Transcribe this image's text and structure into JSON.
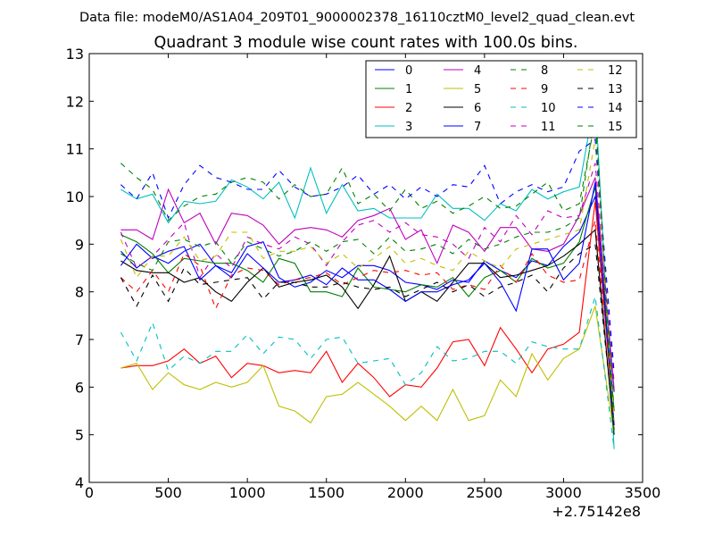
{
  "chart_data": {
    "type": "line",
    "suptitle": "Data file: modeM0/AS1A04_209T01_9000002378_16110cztM0_level2_quad_clean.evt",
    "title": "Quadrant 3 module wise count rates with 100.0s bins.",
    "xlabel": "",
    "ylabel": "",
    "x_offset_label": "+2.75142e8",
    "xlim": [
      0,
      3500
    ],
    "ylim": [
      4,
      13
    ],
    "xticks": [
      "0",
      "500",
      "1000",
      "1500",
      "2000",
      "2500",
      "3000",
      "3500"
    ],
    "yticks": [
      "4",
      "5",
      "6",
      "7",
      "8",
      "9",
      "10",
      "11",
      "12",
      "13"
    ],
    "grid": false,
    "legend_position": "top-right",
    "x": [
      200,
      300,
      400,
      500,
      600,
      700,
      800,
      900,
      1000,
      1100,
      1200,
      1300,
      1400,
      1500,
      1600,
      1700,
      1800,
      1900,
      2000,
      2100,
      2200,
      2300,
      2400,
      2500,
      2600,
      2700,
      2800,
      2900,
      3000,
      3100,
      3200,
      3320
    ],
    "series": [
      {
        "name": "0",
        "color": "#0000ff",
        "dash": "solid",
        "values": [
          8.85,
          8.5,
          8.75,
          8.6,
          8.85,
          9.0,
          8.55,
          8.4,
          8.95,
          9.05,
          8.3,
          8.1,
          8.2,
          8.45,
          8.3,
          8.55,
          8.55,
          8.45,
          8.2,
          8.15,
          8.05,
          8.25,
          8.2,
          8.65,
          8.45,
          8.3,
          8.65,
          8.55,
          8.95,
          9.25,
          10.0,
          5.9
        ]
      },
      {
        "name": "1",
        "color": "#008000",
        "dash": "solid",
        "values": [
          9.2,
          9.05,
          8.8,
          8.4,
          8.7,
          8.65,
          8.6,
          8.6,
          8.45,
          8.2,
          8.7,
          8.6,
          8.0,
          8.0,
          7.9,
          8.5,
          8.1,
          8.05,
          8.0,
          8.15,
          8.1,
          8.3,
          7.9,
          8.3,
          8.45,
          8.2,
          8.7,
          8.5,
          8.6,
          9.05,
          10.2,
          5.5
        ]
      },
      {
        "name": "2",
        "color": "#ff0000",
        "dash": "solid",
        "values": [
          6.4,
          6.45,
          6.45,
          6.55,
          6.8,
          6.5,
          6.65,
          6.2,
          6.5,
          6.45,
          6.3,
          6.35,
          6.3,
          6.75,
          6.1,
          6.5,
          6.2,
          5.8,
          6.05,
          6.0,
          6.4,
          6.95,
          7.0,
          6.45,
          7.25,
          6.8,
          6.3,
          6.8,
          6.9,
          7.15,
          9.9,
          5.2
        ]
      },
      {
        "name": "3",
        "color": "#00bfbf",
        "dash": "solid",
        "values": [
          10.15,
          9.95,
          10.05,
          9.45,
          9.9,
          9.85,
          9.9,
          10.35,
          10.2,
          9.95,
          10.3,
          9.55,
          10.6,
          9.65,
          10.25,
          9.7,
          9.75,
          9.55,
          9.55,
          9.55,
          10.05,
          9.75,
          9.75,
          9.5,
          9.85,
          9.7,
          10.15,
          9.95,
          10.1,
          10.2,
          12.1,
          4.7
        ]
      },
      {
        "name": "4",
        "color": "#bf00bf",
        "dash": "solid",
        "values": [
          9.3,
          9.3,
          9.1,
          10.15,
          9.45,
          9.65,
          9.0,
          9.65,
          9.6,
          9.4,
          9.0,
          9.3,
          9.35,
          9.3,
          9.15,
          9.5,
          9.6,
          9.75,
          9.1,
          9.3,
          8.6,
          9.4,
          9.25,
          8.85,
          9.35,
          9.35,
          8.9,
          8.85,
          9.0,
          9.6,
          10.4,
          5.95
        ]
      },
      {
        "name": "5",
        "color": "#bfbf00",
        "dash": "solid",
        "values": [
          6.4,
          6.5,
          5.95,
          6.3,
          6.05,
          5.95,
          6.1,
          6.0,
          6.1,
          6.45,
          5.6,
          5.5,
          5.25,
          5.8,
          5.85,
          6.1,
          5.85,
          5.6,
          5.3,
          5.6,
          5.3,
          5.95,
          5.3,
          5.4,
          6.15,
          5.8,
          6.7,
          6.15,
          6.6,
          6.8,
          7.7,
          5.0
        ]
      },
      {
        "name": "6",
        "color": "#000000",
        "dash": "solid",
        "values": [
          8.65,
          8.45,
          8.4,
          8.4,
          8.2,
          8.3,
          8.0,
          7.8,
          8.2,
          8.5,
          8.1,
          8.2,
          8.25,
          8.35,
          8.1,
          7.65,
          8.15,
          8.75,
          7.8,
          8.0,
          7.8,
          8.2,
          8.6,
          8.6,
          8.3,
          8.35,
          8.45,
          8.55,
          8.75,
          9.0,
          9.3,
          5.0
        ]
      },
      {
        "name": "7",
        "color": "#0000ff",
        "dash": "solid",
        "values": [
          8.55,
          9.0,
          8.7,
          8.85,
          8.95,
          8.25,
          8.55,
          8.3,
          8.8,
          8.5,
          8.2,
          8.25,
          8.35,
          8.15,
          8.5,
          8.25,
          8.25,
          8.05,
          7.8,
          8.0,
          8.0,
          8.15,
          8.25,
          8.6,
          8.2,
          7.6,
          8.9,
          8.9,
          8.25,
          8.6,
          10.3,
          5.2
        ]
      },
      {
        "name": "8",
        "color": "#008000",
        "dash": "dashed",
        "values": [
          10.7,
          10.4,
          10.15,
          9.5,
          9.8,
          10.0,
          10.05,
          10.3,
          10.4,
          10.3,
          9.95,
          10.25,
          10.0,
          10.05,
          10.6,
          9.85,
          10.05,
          9.7,
          10.15,
          9.75,
          9.9,
          9.65,
          9.8,
          10.0,
          9.75,
          9.8,
          10.05,
          10.3,
          9.7,
          9.85,
          11.6,
          5.5
        ]
      },
      {
        "name": "9",
        "color": "#ff0000",
        "dash": "dashed",
        "values": [
          8.3,
          8.0,
          8.45,
          8.0,
          8.8,
          8.55,
          7.65,
          8.35,
          8.5,
          8.45,
          8.15,
          8.25,
          8.3,
          8.4,
          8.15,
          8.3,
          8.45,
          8.4,
          8.45,
          8.35,
          8.4,
          8.05,
          8.15,
          8.05,
          8.55,
          8.2,
          8.8,
          8.35,
          8.2,
          8.25,
          9.5,
          5.4
        ]
      },
      {
        "name": "10",
        "color": "#00bfbf",
        "dash": "dashed",
        "values": [
          7.15,
          6.55,
          7.35,
          6.35,
          6.65,
          6.5,
          6.75,
          6.75,
          7.1,
          6.7,
          7.05,
          7.0,
          6.6,
          7.0,
          7.05,
          6.5,
          6.55,
          6.6,
          6.05,
          6.3,
          6.85,
          6.55,
          6.6,
          6.75,
          6.75,
          6.5,
          6.95,
          6.85,
          6.8,
          6.8,
          7.9,
          4.7
        ]
      },
      {
        "name": "11",
        "color": "#bf00bf",
        "dash": "dashed",
        "values": [
          9.25,
          8.5,
          8.75,
          9.1,
          9.45,
          8.3,
          8.8,
          8.5,
          9.15,
          9.0,
          8.9,
          9.15,
          9.0,
          8.55,
          9.05,
          9.4,
          9.5,
          9.25,
          9.45,
          9.2,
          9.15,
          9.0,
          8.7,
          9.35,
          9.05,
          9.6,
          9.2,
          9.7,
          9.55,
          9.6,
          10.7,
          6.1
        ]
      },
      {
        "name": "12",
        "color": "#bfbf00",
        "dash": "dashed",
        "values": [
          9.1,
          8.3,
          8.75,
          8.75,
          9.15,
          8.65,
          8.75,
          9.25,
          9.25,
          8.7,
          8.85,
          8.85,
          8.95,
          8.6,
          8.8,
          8.5,
          8.7,
          8.95,
          8.6,
          8.7,
          8.55,
          8.45,
          8.85,
          8.65,
          8.5,
          8.9,
          9.0,
          9.1,
          9.2,
          9.3,
          11.2,
          5.3
        ]
      },
      {
        "name": "13",
        "color": "#000000",
        "dash": "dashed",
        "values": [
          8.3,
          7.7,
          8.35,
          7.8,
          8.5,
          8.15,
          8.2,
          8.25,
          8.3,
          7.85,
          8.2,
          8.2,
          8.1,
          8.1,
          8.2,
          8.1,
          8.05,
          8.1,
          7.9,
          8.05,
          8.2,
          8.0,
          8.15,
          7.9,
          8.1,
          8.2,
          8.35,
          8.0,
          8.5,
          8.8,
          9.0,
          5.1
        ]
      },
      {
        "name": "14",
        "color": "#0000ff",
        "dash": "dashed",
        "values": [
          10.25,
          9.95,
          10.5,
          9.55,
          10.25,
          10.65,
          10.4,
          10.3,
          10.15,
          10.15,
          10.55,
          10.2,
          10.0,
          10.05,
          10.2,
          10.45,
          10.05,
          10.25,
          9.95,
          10.2,
          10.0,
          10.25,
          10.2,
          10.65,
          9.85,
          10.1,
          10.25,
          10.1,
          10.2,
          10.95,
          11.2,
          6.3
        ]
      },
      {
        "name": "15",
        "color": "#008000",
        "dash": "dashed",
        "values": [
          8.8,
          8.6,
          8.45,
          9.05,
          9.1,
          8.95,
          9.05,
          8.6,
          9.05,
          8.9,
          8.75,
          8.85,
          9.05,
          8.85,
          9.05,
          9.1,
          8.8,
          9.15,
          8.85,
          8.9,
          9.0,
          8.8,
          9.1,
          8.9,
          9.0,
          9.15,
          9.25,
          9.25,
          9.35,
          9.55,
          11.8,
          5.0
        ]
      }
    ]
  }
}
